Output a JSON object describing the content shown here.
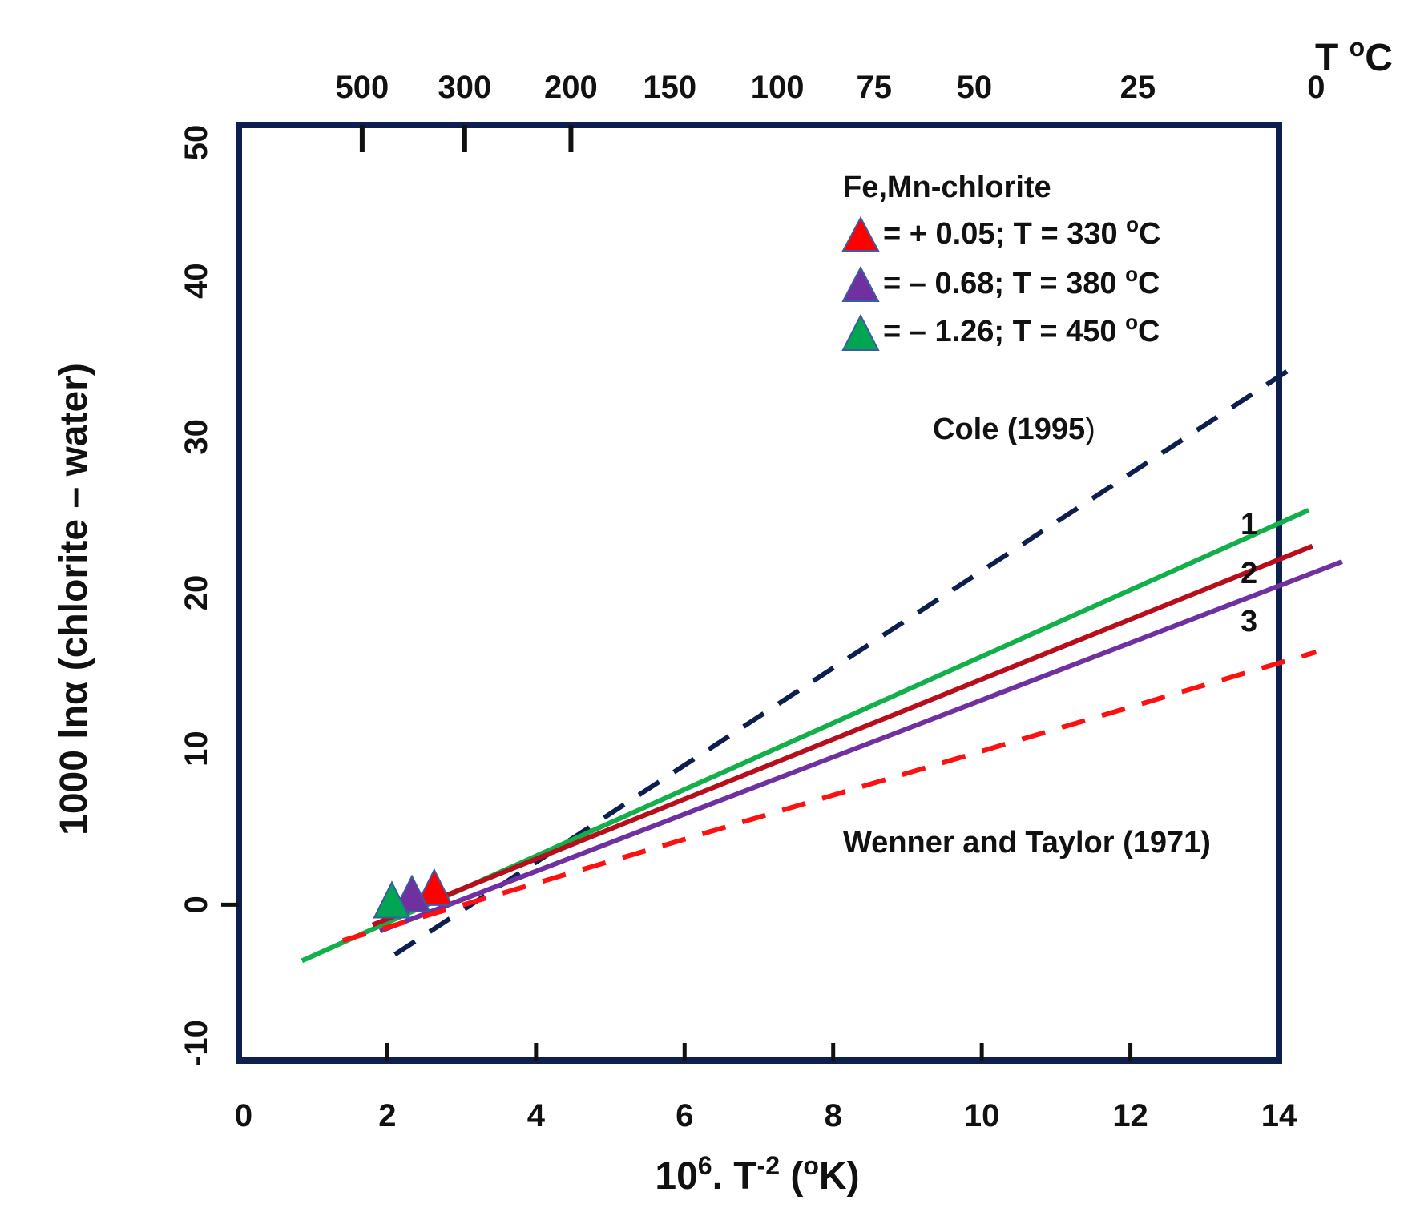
{
  "chart_data": {
    "type": "line",
    "xlabel_main": "10",
    "xlabel_sup1": "6",
    "xlabel_mid": ". T",
    "xlabel_sup2": "-2",
    "xlabel_end1": " (",
    "xlabel_sup3": "o",
    "xlabel_end2": "K)",
    "ylabel": "1000 lnα (chlorite – water)",
    "xlim": [
      0,
      14
    ],
    "ylim": [
      -10,
      50
    ],
    "x_ticks": [
      0,
      2,
      4,
      6,
      8,
      10,
      12,
      14
    ],
    "y_ticks": [
      -10,
      0,
      10,
      20,
      30,
      40,
      50
    ],
    "top_axis": {
      "title_main": "T ",
      "title_sup": "o",
      "title_end": "C",
      "ticks": [
        {
          "label": "500",
          "x": 1.66
        },
        {
          "label": "300",
          "x": 3.04
        },
        {
          "label": "200",
          "x": 4.47
        },
        {
          "label": "150",
          "x": 5.8
        },
        {
          "label": "100",
          "x": 7.25
        },
        {
          "label": "75",
          "x": 8.55
        },
        {
          "label": "50",
          "x": 9.9
        },
        {
          "label": "25",
          "x": 12.1
        },
        {
          "label": "0",
          "x": 14.5
        }
      ],
      "marked_ticks": [
        1.66,
        3.04,
        4.47
      ]
    },
    "series": [
      {
        "name": "Cole (1995)",
        "style": "dashed",
        "color": "#0d1f4f",
        "x": [
          2.1,
          14.3
        ],
        "y": [
          -3.2,
          34.8
        ]
      },
      {
        "name": "1",
        "style": "solid",
        "color": "#12b04a",
        "x": [
          0.85,
          14.4
        ],
        "y": [
          -3.6,
          25.3
        ]
      },
      {
        "name": "2",
        "style": "solid",
        "color": "#b80d1a",
        "x": [
          1.8,
          14.45
        ],
        "y": [
          -1.3,
          23.0
        ]
      },
      {
        "name": "3",
        "style": "solid",
        "color": "#7030a0",
        "x": [
          1.9,
          14.85
        ],
        "y": [
          -1.7,
          22.0
        ]
      },
      {
        "name": "Wenner and Taylor (1971)",
        "style": "dashed",
        "color": "#ff1010",
        "x": [
          1.4,
          14.5
        ],
        "y": [
          -2.3,
          16.2
        ]
      }
    ],
    "points": [
      {
        "name": "Fe,Mn-chlorite 330 °C",
        "color": "#ff0000",
        "x": 2.63,
        "y": 1.1
      },
      {
        "name": "Fe,Mn-chlorite 380 °C",
        "color": "#7030a0",
        "x": 2.33,
        "y": 0.7
      },
      {
        "name": "Fe,Mn-chlorite 450 °C",
        "color": "#00a651",
        "x": 2.06,
        "y": 0.3
      }
    ],
    "series_labels": {
      "cole": "Cole (1995",
      "cole_paren": ")",
      "wenner": "Wenner and Taylor (1971)",
      "line1": "1",
      "line2": "2",
      "line3": "3"
    },
    "legend": {
      "title": "Fe,Mn-chlorite",
      "title_color": "#1f3ff5",
      "entries": [
        {
          "color": "#ff0000",
          "text": "= + 0.05; T = 330 ",
          "sup": "o",
          "unit": "C"
        },
        {
          "color": "#7030a0",
          "text": "= –  0.68; T = 380 ",
          "sup": "o",
          "unit": "C"
        },
        {
          "color": "#00a651",
          "text": "=  – 1.26; T = 450 ",
          "sup": "o",
          "unit": "C"
        }
      ]
    },
    "frame_color": "#0d1f4f",
    "marker_stroke": "#3b5ba5"
  }
}
